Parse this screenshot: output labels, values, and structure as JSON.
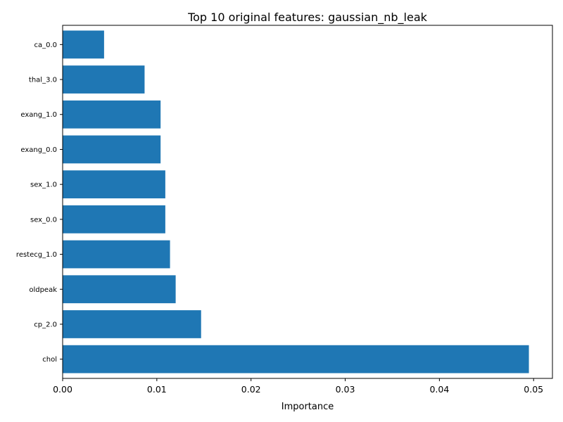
{
  "chart_data": {
    "type": "bar",
    "orientation": "horizontal",
    "title": "Top 10 original features: gaussian_nb_leak",
    "xlabel": "Importance",
    "ylabel": "",
    "categories": [
      "chol",
      "cp_2.0",
      "oldpeak",
      "restecg_1.0",
      "sex_0.0",
      "sex_1.0",
      "exang_0.0",
      "exang_1.0",
      "thal_3.0",
      "ca_0.0"
    ],
    "values": [
      0.0495,
      0.0147,
      0.012,
      0.0114,
      0.0109,
      0.0109,
      0.0104,
      0.0104,
      0.0087,
      0.0044
    ],
    "xlim": [
      0,
      0.052
    ],
    "xticks": [
      0.0,
      0.01,
      0.02,
      0.03,
      0.04,
      0.05
    ],
    "xtick_labels": [
      "0.00",
      "0.01",
      "0.02",
      "0.03",
      "0.04",
      "0.05"
    ],
    "bar_color": "#1f77b4",
    "grid": false,
    "legend": "none"
  }
}
